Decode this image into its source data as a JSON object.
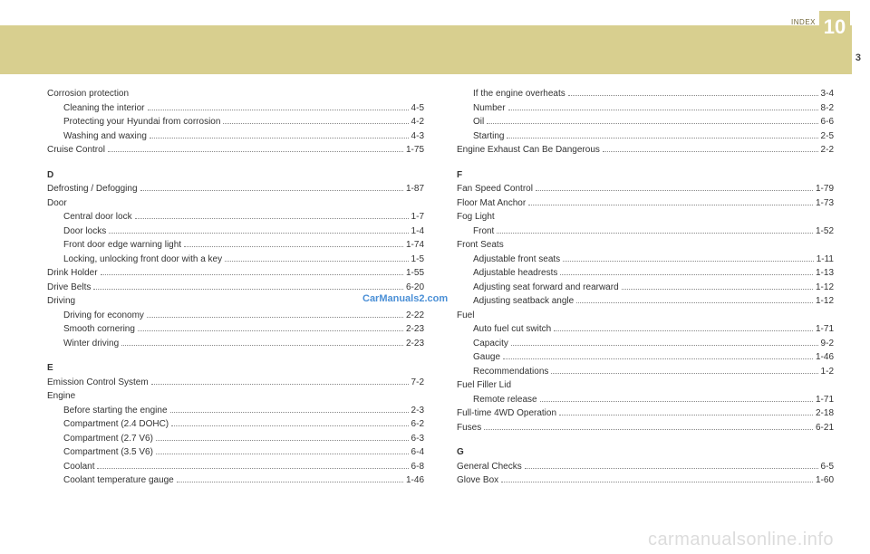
{
  "header": {
    "index_label": "INDEX",
    "chapter": "10",
    "page": "3"
  },
  "watermarks": {
    "w1": "CarManuals2.com",
    "w2": "carmanualsonline.info"
  },
  "left": [
    {
      "type": "plain",
      "label": "Corrosion  protection"
    },
    {
      "type": "sub",
      "label": "Cleaning the interior",
      "pg": "4-5"
    },
    {
      "type": "sub",
      "label": "Protecting  your  Hyundai  from  corrosion",
      "pg": "4-2"
    },
    {
      "type": "sub",
      "label": "Washing and waxing",
      "pg": "4-3"
    },
    {
      "type": "row",
      "label": "Cruise  Control",
      "pg": "1-75"
    },
    {
      "type": "head",
      "label": "D"
    },
    {
      "type": "row",
      "label": "Defrosting / Defogging",
      "pg": "1-87"
    },
    {
      "type": "plain",
      "label": "Door"
    },
    {
      "type": "sub",
      "label": "Central  door  lock",
      "pg": "1-7"
    },
    {
      "type": "sub",
      "label": "Door  locks",
      "pg": "1-4"
    },
    {
      "type": "sub",
      "label": "Front door edge warning light",
      "pg": "1-74"
    },
    {
      "type": "sub",
      "label": "Locking, unlocking front door with a key",
      "pg": "1-5"
    },
    {
      "type": "row",
      "label": "Drink  Holder",
      "pg": "1-55"
    },
    {
      "type": "row",
      "label": "Drive  Belts",
      "pg": "6-20"
    },
    {
      "type": "plain",
      "label": "Driving"
    },
    {
      "type": "sub",
      "label": "Driving  for  economy",
      "pg": "2-22"
    },
    {
      "type": "sub",
      "label": "Smooth  cornering",
      "pg": "2-23"
    },
    {
      "type": "sub",
      "label": "Winter driving",
      "pg": "2-23"
    },
    {
      "type": "head",
      "label": "E"
    },
    {
      "type": "row",
      "label": "Emission  Control  System",
      "pg": "7-2"
    },
    {
      "type": "plain",
      "label": "Engine"
    },
    {
      "type": "sub",
      "label": "Before starting the engine",
      "pg": "2-3"
    },
    {
      "type": "sub",
      "label": "Compartment  (2.4  DOHC)",
      "pg": "6-2"
    },
    {
      "type": "sub",
      "label": "Compartment  (2.7  V6)",
      "pg": "6-3"
    },
    {
      "type": "sub",
      "label": "Compartment  (3.5  V6)",
      "pg": "6-4"
    },
    {
      "type": "sub",
      "label": "Coolant",
      "pg": "6-8"
    },
    {
      "type": "sub",
      "label": "Coolant temperature gauge",
      "pg": "1-46"
    }
  ],
  "right": [
    {
      "type": "sub",
      "label": "If the engine overheats",
      "pg": "3-4"
    },
    {
      "type": "sub",
      "label": "Number",
      "pg": "8-2"
    },
    {
      "type": "sub",
      "label": "Oil",
      "pg": "6-6"
    },
    {
      "type": "sub",
      "label": "Starting",
      "pg": "2-5"
    },
    {
      "type": "row",
      "label": "Engine Exhaust Can Be Dangerous",
      "pg": "2-2"
    },
    {
      "type": "head",
      "label": "F"
    },
    {
      "type": "row",
      "label": "Fan Speed Control",
      "pg": "1-79"
    },
    {
      "type": "row",
      "label": "Floor Mat Anchor",
      "pg": "1-73"
    },
    {
      "type": "plain",
      "label": "Fog Light"
    },
    {
      "type": "sub",
      "label": "Front",
      "pg": "1-52"
    },
    {
      "type": "plain",
      "label": "Front  Seats"
    },
    {
      "type": "sub",
      "label": "Adjustable  front  seats",
      "pg": "1-11"
    },
    {
      "type": "sub",
      "label": "Adjustable  headrests",
      "pg": "1-13"
    },
    {
      "type": "sub",
      "label": "Adjusting seat forward and rearward",
      "pg": "1-12"
    },
    {
      "type": "sub",
      "label": "Adjusting seatback angle",
      "pg": "1-12"
    },
    {
      "type": "plain",
      "label": "Fuel"
    },
    {
      "type": "sub",
      "label": "Auto fuel cut switch",
      "pg": "1-71"
    },
    {
      "type": "sub",
      "label": "Capacity",
      "pg": "9-2"
    },
    {
      "type": "sub",
      "label": "Gauge",
      "pg": "1-46"
    },
    {
      "type": "sub",
      "label": "Recommendations",
      "pg": "1-2"
    },
    {
      "type": "plain",
      "label": "Fuel Filler Lid"
    },
    {
      "type": "sub",
      "label": "Remote  release",
      "pg": "1-71"
    },
    {
      "type": "row",
      "label": "Full-time 4WD Operation",
      "pg": "2-18"
    },
    {
      "type": "row",
      "label": "Fuses",
      "pg": "6-21"
    },
    {
      "type": "head",
      "label": "G"
    },
    {
      "type": "row",
      "label": "General  Checks",
      "pg": "6-5"
    },
    {
      "type": "row",
      "label": "Glove  Box",
      "pg": "1-60"
    }
  ]
}
